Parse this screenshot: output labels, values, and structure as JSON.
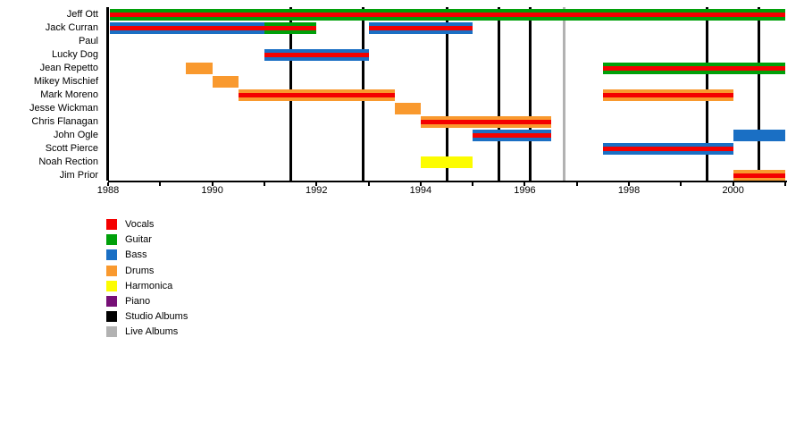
{
  "colors": {
    "vocals": "#f40000",
    "guitar": "#00a00a",
    "bass": "#1a6fc4",
    "drums": "#f9992e",
    "harmonica": "#fcfc00",
    "piano": "#760f76",
    "studio_album": "#000000",
    "live_album": "#b2b2b2"
  },
  "chart_data": {
    "type": "timeline",
    "title": "",
    "x_axis": {
      "start": 1988,
      "end": 2001,
      "tick_interval": 1,
      "label_interval": 2,
      "tick_labels": [
        {
          "year": 1988,
          "label": "1988"
        },
        {
          "year": 1990,
          "label": "1990"
        },
        {
          "year": 1992,
          "label": "1992"
        },
        {
          "year": 1994,
          "label": "1994"
        },
        {
          "year": 1996,
          "label": "1996"
        },
        {
          "year": 1998,
          "label": "1998"
        },
        {
          "year": 2000,
          "label": "2000"
        }
      ]
    },
    "members": [
      {
        "name": "Jeff Ott",
        "bars": [
          {
            "start": 1988,
            "end": 2001,
            "roles": [
              "guitar",
              "vocals"
            ]
          }
        ]
      },
      {
        "name": "Jack Curran",
        "bars": [
          {
            "start": 1988,
            "end": 1991,
            "roles": [
              "bass",
              "vocals"
            ]
          },
          {
            "start": 1991,
            "end": 1992,
            "roles": [
              "guitar",
              "vocals"
            ]
          },
          {
            "start": 1993,
            "end": 1995,
            "roles": [
              "bass",
              "vocals"
            ]
          }
        ]
      },
      {
        "name": "Paul",
        "bars": []
      },
      {
        "name": "Lucky Dog",
        "bars": [
          {
            "start": 1991,
            "end": 1993,
            "roles": [
              "bass",
              "vocals"
            ]
          }
        ]
      },
      {
        "name": "Jean Repetto",
        "bars": [
          {
            "start": 1989.5,
            "end": 1990,
            "roles": [
              "drums"
            ]
          },
          {
            "start": 1997.5,
            "end": 2001,
            "roles": [
              "guitar",
              "vocals"
            ]
          }
        ]
      },
      {
        "name": "Mikey Mischief",
        "bars": [
          {
            "start": 1990,
            "end": 1990.5,
            "roles": [
              "drums"
            ]
          }
        ]
      },
      {
        "name": "Mark Moreno",
        "bars": [
          {
            "start": 1990.5,
            "end": 1993.5,
            "roles": [
              "drums",
              "vocals"
            ]
          },
          {
            "start": 1997.5,
            "end": 2000,
            "roles": [
              "drums",
              "vocals"
            ]
          }
        ]
      },
      {
        "name": "Jesse Wickman",
        "bars": [
          {
            "start": 1993.5,
            "end": 1994,
            "roles": [
              "drums"
            ]
          }
        ]
      },
      {
        "name": "Chris Flanagan",
        "bars": [
          {
            "start": 1994,
            "end": 1996.5,
            "roles": [
              "drums",
              "vocals"
            ]
          }
        ]
      },
      {
        "name": "John Ogle",
        "bars": [
          {
            "start": 1995,
            "end": 1996.5,
            "roles": [
              "bass",
              "vocals"
            ]
          },
          {
            "start": 2000,
            "end": 2001,
            "roles": [
              "bass"
            ]
          }
        ]
      },
      {
        "name": "Scott Pierce",
        "bars": [
          {
            "start": 1997.5,
            "end": 2000,
            "roles": [
              "bass",
              "vocals"
            ]
          }
        ]
      },
      {
        "name": "Noah Rection",
        "bars": [
          {
            "start": 1994,
            "end": 1995,
            "roles": [
              "harmonica"
            ]
          }
        ]
      },
      {
        "name": "Jim Prior",
        "bars": [
          {
            "start": 2000,
            "end": 2001,
            "roles": [
              "drums",
              "vocals"
            ]
          }
        ]
      }
    ],
    "studio_albums": [
      1988.0,
      1991.5,
      1992.9,
      1994.5,
      1995.5,
      1996.1,
      1999.5,
      2000.5
    ],
    "live_albums": [
      1996.75
    ]
  },
  "legend": {
    "items": [
      {
        "label": "Vocals",
        "color_key": "vocals"
      },
      {
        "label": "Guitar",
        "color_key": "guitar"
      },
      {
        "label": "Bass",
        "color_key": "bass"
      },
      {
        "label": "Drums",
        "color_key": "drums"
      },
      {
        "label": "Harmonica",
        "color_key": "harmonica"
      },
      {
        "label": "Piano",
        "color_key": "piano"
      },
      {
        "label": "Studio Albums",
        "color_key": "studio_album"
      },
      {
        "label": "Live Albums",
        "color_key": "live_album"
      }
    ]
  }
}
